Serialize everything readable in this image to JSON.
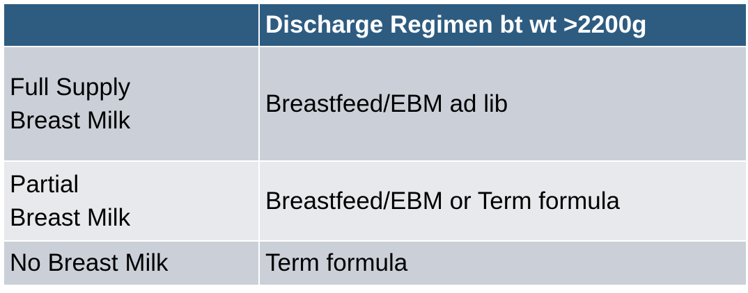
{
  "table": {
    "header": {
      "col1": "",
      "col2": "Discharge Regimen bt wt >2200g"
    },
    "rows": [
      {
        "label_lines": [
          "Full Supply",
          "Breast Milk"
        ],
        "value": "Breastfeed/EBM ad lib"
      },
      {
        "label_lines": [
          "Partial",
          "Breast Milk"
        ],
        "value": "Breastfeed/EBM or Term formula"
      },
      {
        "label_lines": [
          "No Breast Milk"
        ],
        "value": "Term formula"
      }
    ]
  },
  "colors": {
    "header_bg": "#2e5c81",
    "row_dark": "#cbd0d8",
    "row_light": "#e7e9ed"
  }
}
